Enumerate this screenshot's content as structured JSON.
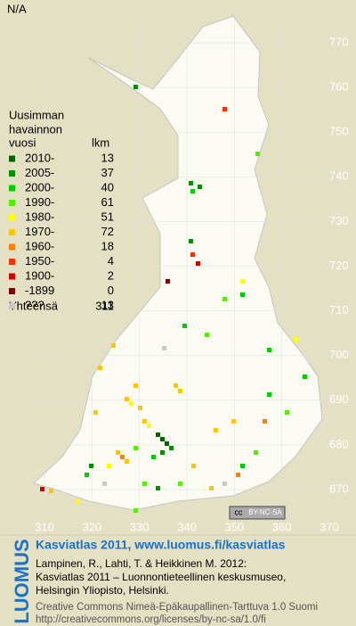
{
  "header": "N/A",
  "legend": {
    "title": [
      "Uusimman",
      "havainnon",
      "vuosi"
    ],
    "count_header": "lkm",
    "rows": [
      {
        "label": "2010-",
        "count": 13,
        "color": "#006400"
      },
      {
        "label": "2005-",
        "count": 37,
        "color": "#009000"
      },
      {
        "label": "2000-",
        "count": 40,
        "color": "#00cc00"
      },
      {
        "label": "1990-",
        "count": 61,
        "color": "#55ee00"
      },
      {
        "label": "1980-",
        "count": 51,
        "color": "#ffff00"
      },
      {
        "label": "1970-",
        "count": 72,
        "color": "#ffc400"
      },
      {
        "label": "1960-",
        "count": 18,
        "color": "#ff8000"
      },
      {
        "label": "1950-",
        "count": 4,
        "color": "#ff3000"
      },
      {
        "label": "1900-",
        "count": 2,
        "color": "#d00000"
      },
      {
        "label": "-1899",
        "count": 0,
        "color": "#800000"
      },
      {
        "label": "???",
        "count": 13,
        "color": "#c8c8c8"
      }
    ],
    "total": {
      "label": "Yhteensä",
      "count": 311
    }
  },
  "axes": {
    "y_labels": [
      770,
      760,
      750,
      740,
      730,
      720,
      710,
      700,
      690,
      680,
      670
    ],
    "x_labels": [
      310,
      320,
      330,
      340,
      350,
      360,
      370
    ]
  },
  "license_badge": {
    "icon": "cc",
    "text": "BY-NC-SA"
  },
  "footer": {
    "brand": "LUOMUS",
    "title": "Kasviatlas 2011, www.luomus.fi/kasviatlas",
    "citation": [
      "Lampinen, R., Lahti, T. & Heikkinen M. 2012:",
      "Kasviatlas 2011 – Luonnontieteellinen keskusmuseo,",
      "Helsingin Yliopisto, Helsinki."
    ],
    "license": [
      "Creative Commons Nimeä-Epäkaupallinen-Tarttuva 1.0 Suomi",
      "http://creativecommons.org/licenses/by-nc-sa/1.0/fi"
    ]
  }
}
